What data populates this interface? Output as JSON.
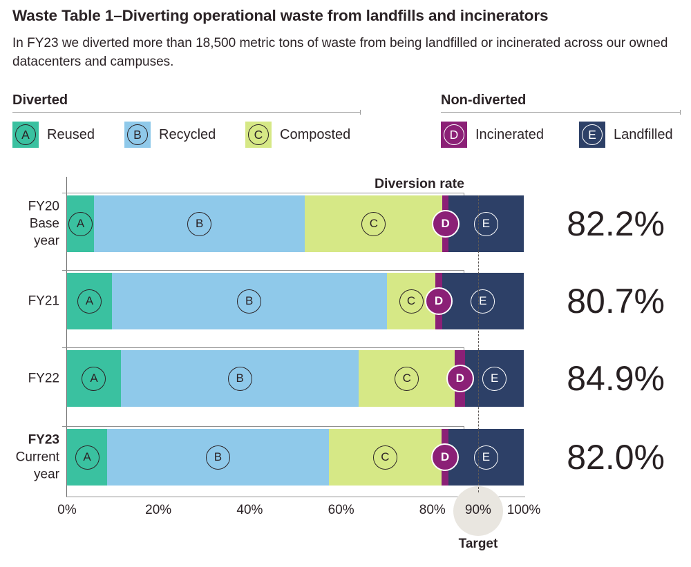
{
  "page": {
    "title": "Waste Table 1–Diverting operational waste from landfills and incinerators",
    "subtitle": "In FY23 we diverted more than 18,500 metric tons of waste from being landfilled or incinerated across our owned datacenters and campuses."
  },
  "legend": {
    "diverted": {
      "header": "Diverted",
      "items": [
        {
          "key": "A",
          "label": "Reused"
        },
        {
          "key": "B",
          "label": "Recycled"
        },
        {
          "key": "C",
          "label": "Composted"
        }
      ]
    },
    "non_diverted": {
      "header": "Non-diverted",
      "items": [
        {
          "key": "D",
          "label": "Incinerated"
        },
        {
          "key": "E",
          "label": "Landfilled"
        }
      ]
    }
  },
  "chart_data": {
    "type": "bar",
    "subtype": "horizontal-stacked",
    "unit": "percent",
    "annotation": "Diversion rate",
    "x_axis": {
      "tick_labels": [
        "0%",
        "20%",
        "40%",
        "60%",
        "80%",
        "90%",
        "100%"
      ],
      "tick_values": [
        0,
        20,
        40,
        60,
        80,
        90,
        100
      ],
      "range": [
        0,
        100
      ]
    },
    "target": {
      "value": 90,
      "label": "Target",
      "circle_color": "#e9e6e0"
    },
    "categories": [
      {
        "key": "A",
        "label": "Reused",
        "group": "Diverted",
        "color": "#3ac1a0",
        "circle": "dark"
      },
      {
        "key": "B",
        "label": "Recycled",
        "group": "Diverted",
        "color": "#8fc9ea",
        "circle": "dark"
      },
      {
        "key": "C",
        "label": "Composted",
        "group": "Diverted",
        "color": "#d6e886",
        "circle": "dark"
      },
      {
        "key": "D",
        "label": "Incinerated",
        "group": "Non-diverted",
        "color": "#8b2076",
        "circle": "filled"
      },
      {
        "key": "E",
        "label": "Landfilled",
        "group": "Non-diverted",
        "color": "#2d4067",
        "circle": "white"
      }
    ],
    "rows": [
      {
        "label_lines": [
          "FY20",
          "Base",
          "year"
        ],
        "bold_first": false,
        "values": {
          "A": 5.9,
          "B": 46.2,
          "C": 30.1,
          "D": 1.3,
          "E": 16.5
        },
        "diversion_rate_label": "82.2%",
        "diversion_rate_value": 82.2
      },
      {
        "label_lines": [
          "FY21"
        ],
        "bold_first": false,
        "values": {
          "A": 9.8,
          "B": 60.2,
          "C": 10.7,
          "D": 1.4,
          "E": 17.9
        },
        "diversion_rate_label": "80.7%",
        "diversion_rate_value": 80.7
      },
      {
        "label_lines": [
          "FY22"
        ],
        "bold_first": false,
        "values": {
          "A": 11.8,
          "B": 52.1,
          "C": 21.0,
          "D": 2.3,
          "E": 12.8
        },
        "diversion_rate_label": "84.9%",
        "diversion_rate_value": 84.9
      },
      {
        "label_lines": [
          "FY23",
          "Current",
          "year"
        ],
        "bold_first": true,
        "values": {
          "A": 8.8,
          "B": 48.5,
          "C": 24.7,
          "D": 1.5,
          "E": 16.5
        },
        "diversion_rate_label": "82.0%",
        "diversion_rate_value": 82.0
      }
    ]
  }
}
